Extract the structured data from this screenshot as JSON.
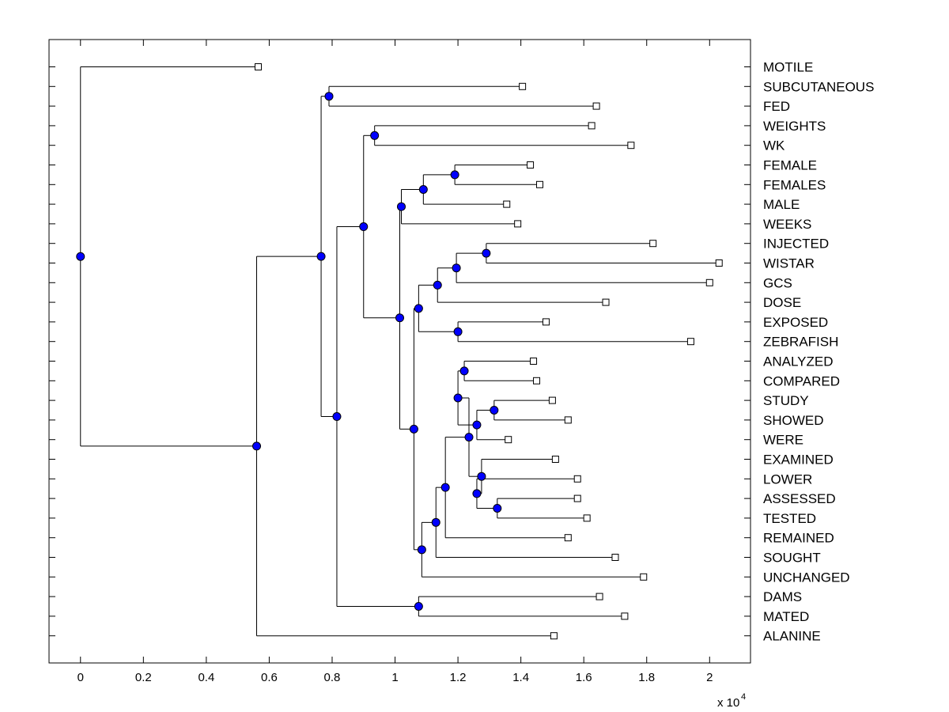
{
  "chart_data": {
    "type": "dendrogram",
    "orientation": "horizontal",
    "x_multiplier_label": "x 10",
    "x_multiplier_exponent": "4",
    "xlim": [
      -0.1,
      2.13
    ],
    "x_ticks": [
      0,
      0.2,
      0.4,
      0.6,
      0.8,
      1,
      1.2,
      1.4,
      1.6,
      1.8,
      2
    ],
    "x_tick_labels": [
      "0",
      "0.2",
      "0.4",
      "0.6",
      "0.8",
      "1",
      "1.2",
      "1.4",
      "1.6",
      "1.8",
      "2"
    ],
    "node_color": "#0000ff",
    "leaf_marker": "open-square",
    "leaves": [
      {
        "label": "MOTILE",
        "x": 0.565
      },
      {
        "label": "SUBCUTANEOUS",
        "x": 1.405
      },
      {
        "label": "FED",
        "x": 1.64
      },
      {
        "label": "WEIGHTS",
        "x": 1.625
      },
      {
        "label": "WK",
        "x": 1.75
      },
      {
        "label": "FEMALE",
        "x": 1.43
      },
      {
        "label": "FEMALES",
        "x": 1.46
      },
      {
        "label": "MALE",
        "x": 1.355
      },
      {
        "label": "WEEKS",
        "x": 1.39
      },
      {
        "label": "INJECTED",
        "x": 1.82
      },
      {
        "label": "WISTAR",
        "x": 2.03
      },
      {
        "label": "GCS",
        "x": 2.0
      },
      {
        "label": "DOSE",
        "x": 1.67
      },
      {
        "label": "EXPOSED",
        "x": 1.48
      },
      {
        "label": "ZEBRAFISH",
        "x": 1.94
      },
      {
        "label": "ANALYZED",
        "x": 1.44
      },
      {
        "label": "COMPARED",
        "x": 1.45
      },
      {
        "label": "STUDY",
        "x": 1.5
      },
      {
        "label": "SHOWED",
        "x": 1.55
      },
      {
        "label": "WERE",
        "x": 1.36
      },
      {
        "label": "EXAMINED",
        "x": 1.51
      },
      {
        "label": "LOWER",
        "x": 1.58
      },
      {
        "label": "ASSESSED",
        "x": 1.58
      },
      {
        "label": "TESTED",
        "x": 1.61
      },
      {
        "label": "REMAINED",
        "x": 1.55
      },
      {
        "label": "SOUGHT",
        "x": 1.7
      },
      {
        "label": "UNCHANGED",
        "x": 1.79
      },
      {
        "label": "DAMS",
        "x": 1.65
      },
      {
        "label": "MATED",
        "x": 1.73
      },
      {
        "label": "ALANINE",
        "x": 1.505
      }
    ],
    "merges": [
      {
        "id": "n1",
        "x": 1.19,
        "children": [
          "L5",
          "L6"
        ]
      },
      {
        "id": "n2",
        "x": 1.09,
        "children": [
          "n1",
          "L7"
        ]
      },
      {
        "id": "n3",
        "x": 1.02,
        "children": [
          "n2",
          "L8"
        ]
      },
      {
        "id": "n4",
        "x": 1.29,
        "children": [
          "L9",
          "L10"
        ]
      },
      {
        "id": "n5",
        "x": 1.195,
        "children": [
          "n4",
          "L11"
        ]
      },
      {
        "id": "n6",
        "x": 1.135,
        "children": [
          "n5",
          "L12"
        ]
      },
      {
        "id": "n7",
        "x": 1.2,
        "children": [
          "L13",
          "L14"
        ]
      },
      {
        "id": "n8",
        "x": 1.075,
        "children": [
          "n6",
          "n7"
        ]
      },
      {
        "id": "n9",
        "x": 1.22,
        "children": [
          "L15",
          "L16"
        ]
      },
      {
        "id": "n10",
        "x": 1.315,
        "children": [
          "L17",
          "L18"
        ]
      },
      {
        "id": "n11",
        "x": 1.26,
        "children": [
          "n10",
          "L19"
        ]
      },
      {
        "id": "n12",
        "x": 1.2,
        "children": [
          "n9",
          "n11"
        ]
      },
      {
        "id": "n13",
        "x": 1.325,
        "children": [
          "L22",
          "L23"
        ]
      },
      {
        "id": "n14",
        "x": 1.26,
        "children": [
          "L21",
          "n13"
        ]
      },
      {
        "id": "n15",
        "x": 1.275,
        "children": [
          "L20",
          "n14"
        ]
      },
      {
        "id": "n16",
        "x": 1.235,
        "children": [
          "n12",
          "n15"
        ]
      },
      {
        "id": "n17",
        "x": 1.16,
        "children": [
          "n16",
          "L24"
        ]
      },
      {
        "id": "n18",
        "x": 1.13,
        "children": [
          "n17",
          "L25"
        ]
      },
      {
        "id": "n19",
        "x": 1.085,
        "children": [
          "n18",
          "L26"
        ]
      },
      {
        "id": "n20",
        "x": 1.06,
        "children": [
          "n8",
          "n19"
        ]
      },
      {
        "id": "n21",
        "x": 1.015,
        "children": [
          "n3",
          "n20"
        ]
      },
      {
        "id": "n22",
        "x": 0.935,
        "children": [
          "L3",
          "L4"
        ]
      },
      {
        "id": "n23",
        "x": 0.9,
        "children": [
          "n22",
          "n21"
        ]
      },
      {
        "id": "n24",
        "x": 0.79,
        "children": [
          "L1",
          "L2"
        ]
      },
      {
        "id": "n25",
        "x": 1.075,
        "children": [
          "L27",
          "L28"
        ]
      },
      {
        "id": "n26",
        "x": 0.815,
        "children": [
          "n23",
          "n25"
        ]
      },
      {
        "id": "n27",
        "x": 0.765,
        "children": [
          "n24",
          "n26"
        ]
      },
      {
        "id": "n28",
        "x": 0.56,
        "children": [
          "n27",
          "L29"
        ]
      },
      {
        "id": "n29",
        "x": 0.0,
        "children": [
          "L0",
          "n28"
        ]
      }
    ]
  }
}
